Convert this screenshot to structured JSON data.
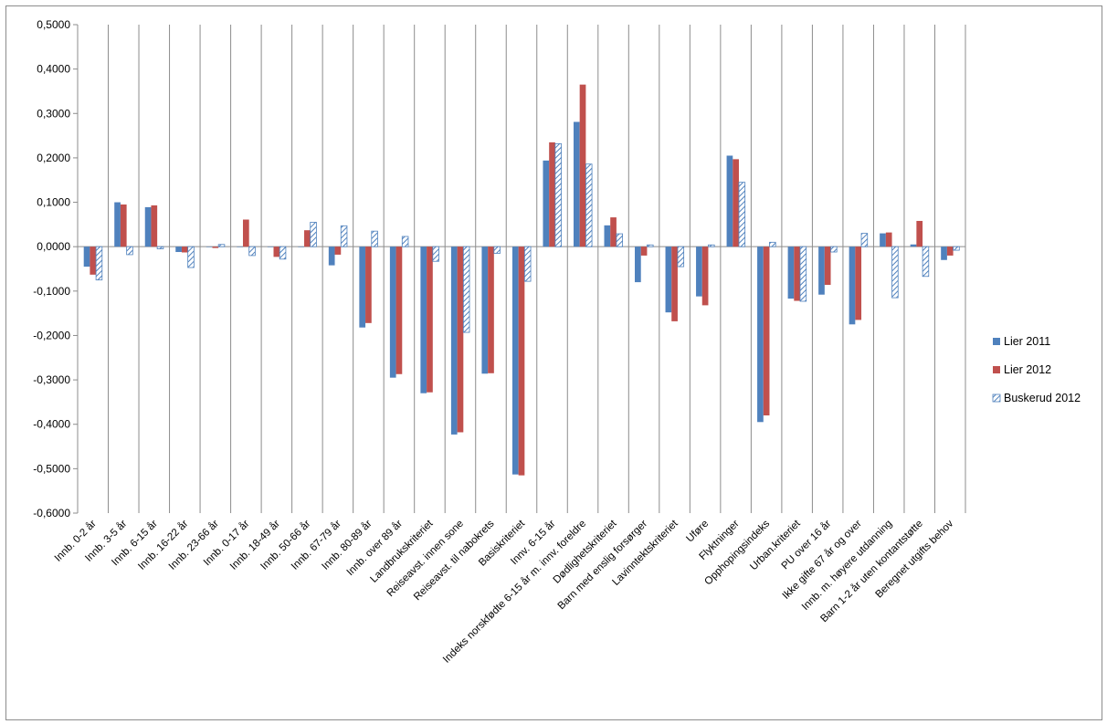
{
  "chart_data": {
    "type": "bar",
    "title": "",
    "xlabel": "",
    "ylabel": "",
    "ylim": [
      -0.6,
      0.5
    ],
    "ytick_step": 0.1,
    "ytick_labels": [
      "0,5000",
      "0,4000",
      "0,3000",
      "0,2000",
      "0,1000",
      "0,0000",
      "-0,1000",
      "-0,2000",
      "-0,3000",
      "-0,4000",
      "-0,5000",
      "-0,6000"
    ],
    "grid": "vertical",
    "legend_position": "right",
    "categories": [
      "Innb. 0-2 år",
      "Innb. 3-5 år",
      "Innb. 6-15 år",
      "Innb. 16-22 år",
      "Innb. 23-66 år",
      "Innb. 0-17 år",
      "Innb. 18-49 år",
      "Innb. 50-66 år",
      "Innb. 67-79 år",
      "Innb. 80-89 år",
      "Innb. over 89 år",
      "Landbrukskriteriet",
      "Reiseavst. innen sone",
      "Reiseavst. til nabokrets",
      "Basiskriteriet",
      "Innv. 6-15 år",
      "Indeks norskfødte 6-15 år m. innv. foreldre",
      "Dødlighetskriteriet",
      "Barn med enslig forsørger",
      "Lavinntektskriteriet",
      "Uføre",
      "Flyktninger",
      "Opphopingsindeks",
      "Urban.kriteriet",
      "PU over 16 år",
      "Ikke gifte 67 år og over",
      "Innb. m. høyere utdanning",
      "Barn 1-2 år uten kontantstøtte",
      "Beregnet utgifts behov"
    ],
    "series": [
      {
        "name": "Lier 2011",
        "color": "#4f81bd",
        "pattern": "solid",
        "values": [
          -0.045,
          0.1,
          0.089,
          -0.012,
          0.0,
          0.0,
          0.0,
          0.0,
          -0.042,
          -0.182,
          -0.295,
          -0.33,
          -0.423,
          -0.286,
          -0.513,
          0.194,
          0.281,
          0.048,
          -0.08,
          -0.148,
          -0.112,
          0.205,
          -0.395,
          -0.117,
          -0.108,
          -0.175,
          0.03,
          0.005,
          -0.03
        ]
      },
      {
        "name": "Lier 2012",
        "color": "#c0504d",
        "pattern": "solid",
        "values": [
          -0.063,
          0.095,
          0.093,
          -0.013,
          -0.003,
          0.061,
          -0.023,
          0.037,
          -0.018,
          -0.172,
          -0.287,
          -0.328,
          -0.418,
          -0.285,
          -0.515,
          0.235,
          0.365,
          0.066,
          -0.02,
          -0.168,
          -0.132,
          0.197,
          -0.38,
          -0.122,
          -0.086,
          -0.165,
          0.032,
          0.058,
          -0.02
        ]
      },
      {
        "name": "Buskerud 2012",
        "color": "#4f81bd",
        "pattern": "hatched",
        "values": [
          -0.075,
          -0.018,
          -0.005,
          -0.047,
          0.005,
          -0.02,
          -0.028,
          0.055,
          0.047,
          0.035,
          0.023,
          -0.033,
          -0.193,
          -0.015,
          -0.078,
          0.232,
          0.186,
          0.029,
          0.004,
          -0.045,
          0.004,
          0.145,
          0.01,
          -0.123,
          -0.012,
          0.03,
          -0.115,
          -0.067,
          -0.008
        ]
      }
    ]
  }
}
